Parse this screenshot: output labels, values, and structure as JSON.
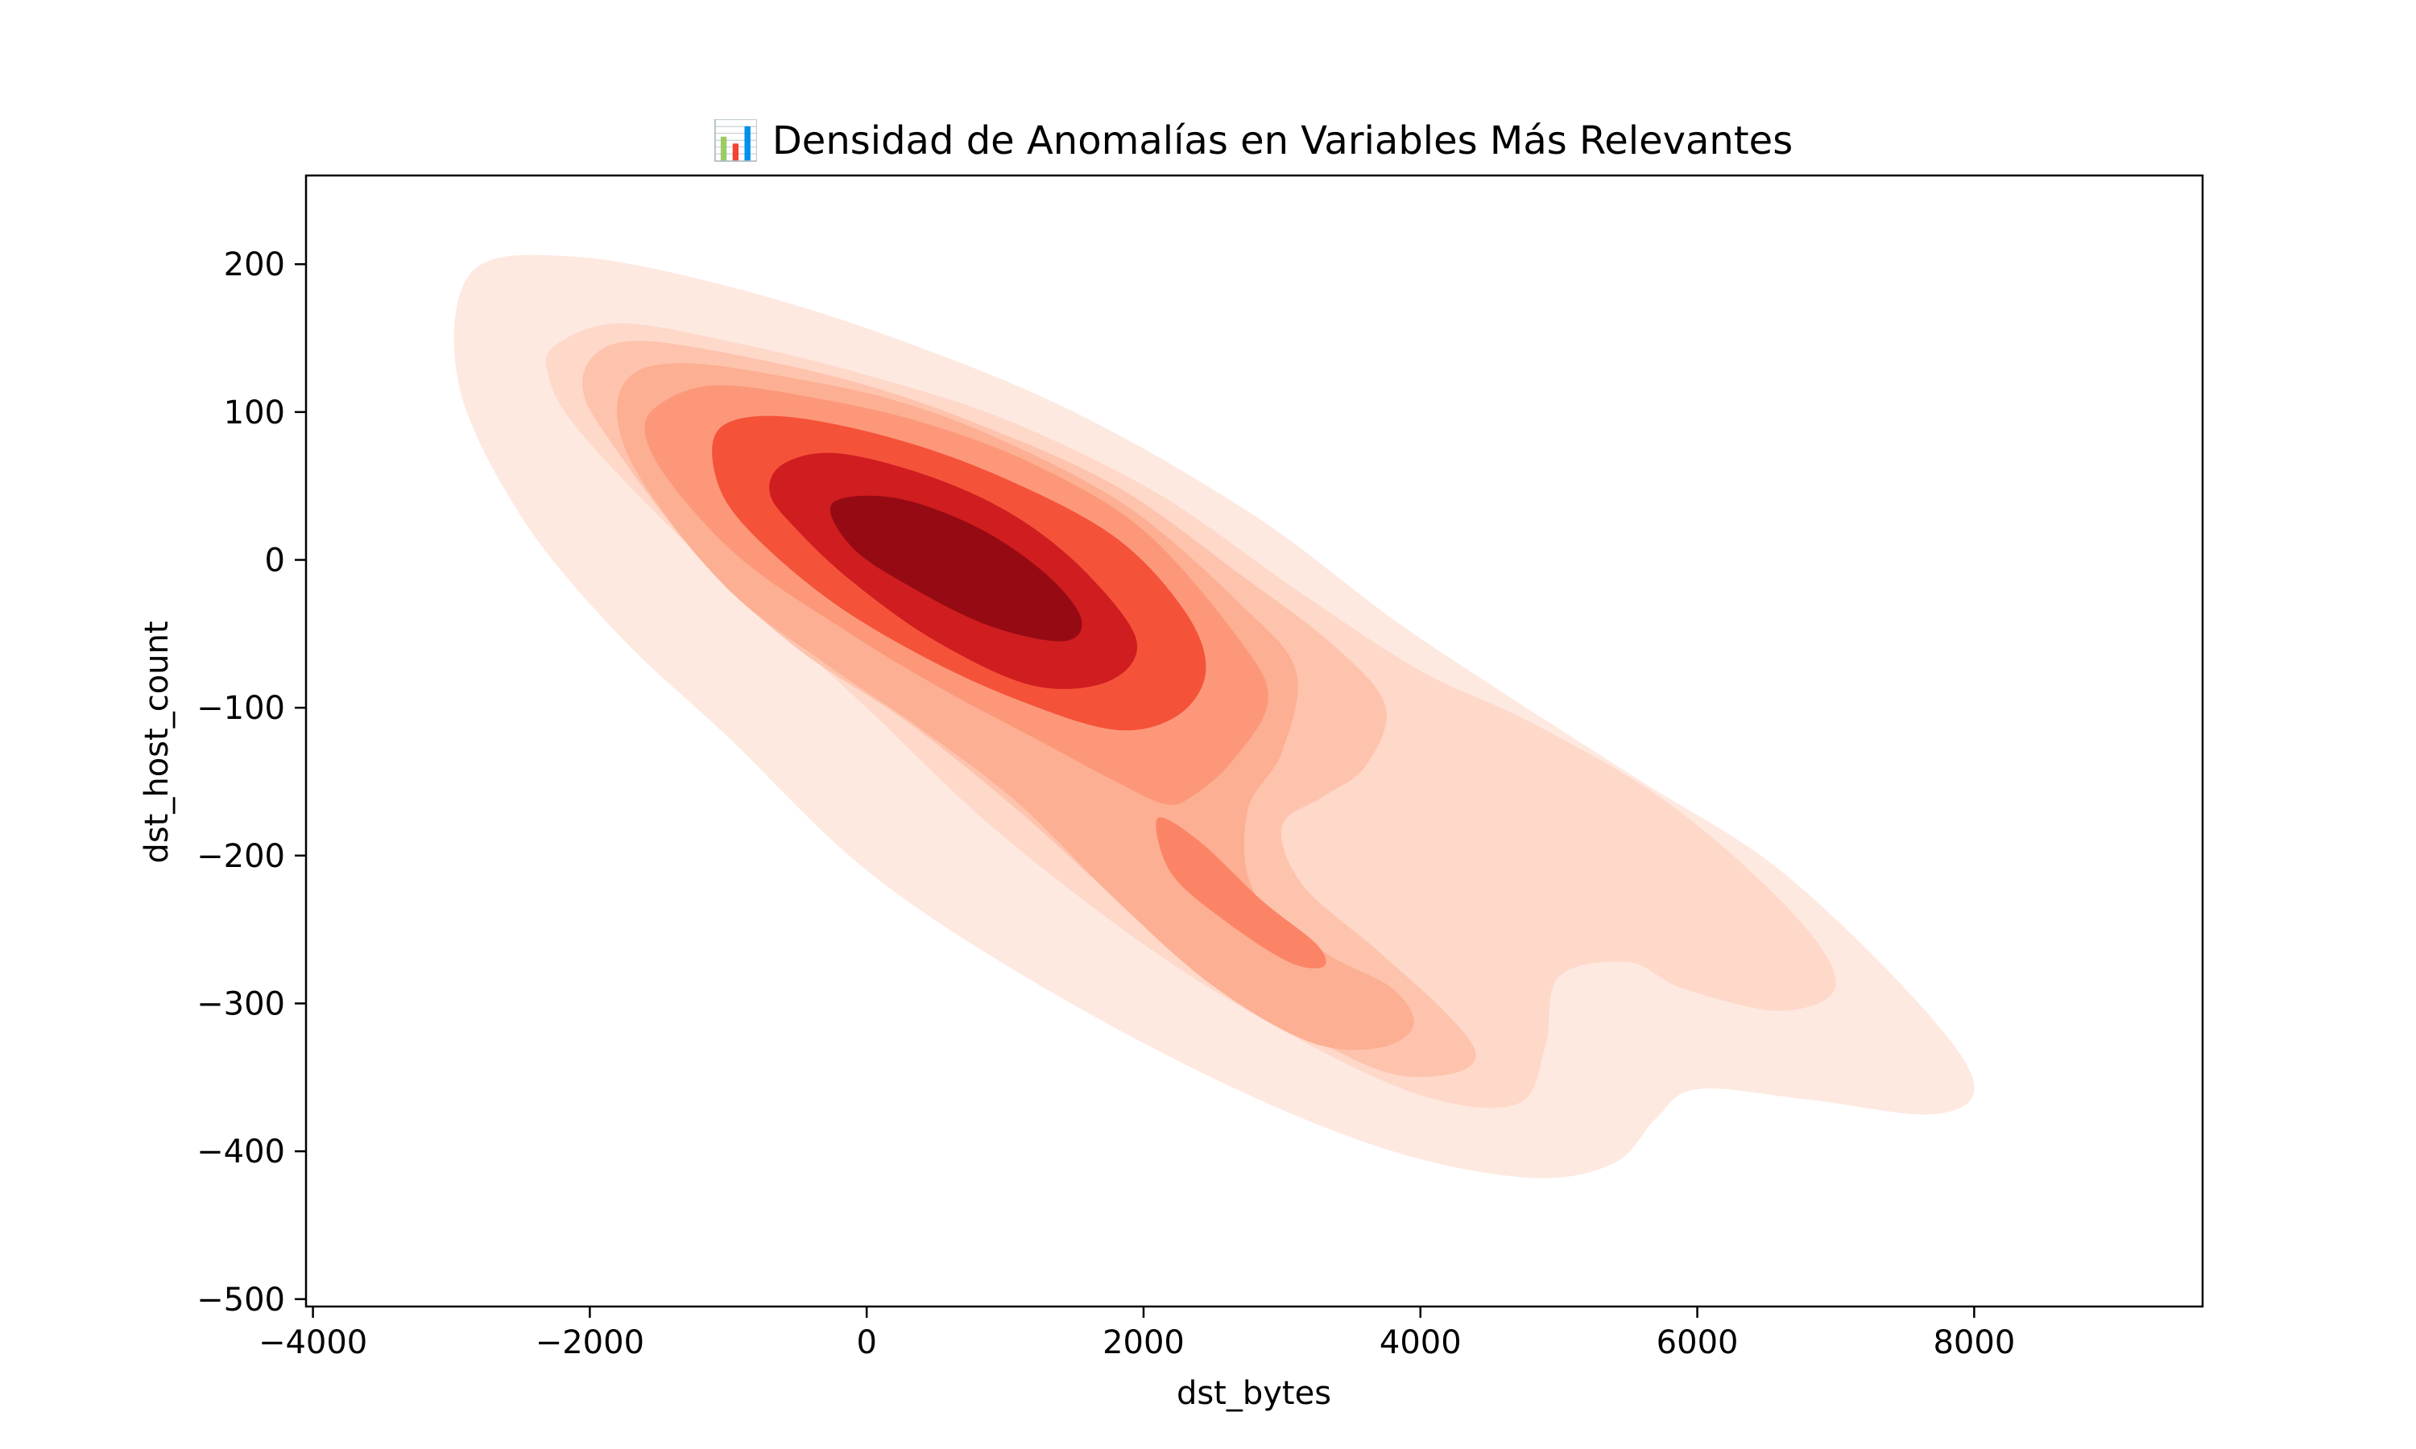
{
  "chart_data": {
    "type": "kde-contour",
    "title": "📊 Densidad de Anomalías en Variables Más Relevantes",
    "xlabel": "dst_bytes",
    "ylabel": "dst_host_count",
    "xlim": [
      -4050,
      9650
    ],
    "ylim": [
      -505,
      260
    ],
    "xticks": [
      {
        "value": -4000,
        "label": "−4000"
      },
      {
        "value": -2000,
        "label": "−2000"
      },
      {
        "value": 0,
        "label": "0"
      },
      {
        "value": 2000,
        "label": "2000"
      },
      {
        "value": 4000,
        "label": "4000"
      },
      {
        "value": 6000,
        "label": "6000"
      },
      {
        "value": 8000,
        "label": "8000"
      }
    ],
    "yticks": [
      {
        "value": 200,
        "label": "200"
      },
      {
        "value": 100,
        "label": "100"
      },
      {
        "value": 0,
        "label": "0"
      },
      {
        "value": -100,
        "label": "−100"
      },
      {
        "value": -200,
        "label": "−200"
      },
      {
        "value": -300,
        "label": "−300"
      },
      {
        "value": -400,
        "label": "−400"
      },
      {
        "value": -500,
        "label": "−500"
      }
    ],
    "grid": false,
    "colormap": "Reds",
    "density_peaks": [
      {
        "x": 700,
        "y": 0
      },
      {
        "x": 2900,
        "y": -235
      },
      {
        "x": 6400,
        "y": -250
      }
    ],
    "contour_levels": [
      {
        "level": 1,
        "color": "#fee9e1",
        "points": [
          [
            -2850,
            195
          ],
          [
            -2100,
            205
          ],
          [
            -1000,
            185
          ],
          [
            200,
            150
          ],
          [
            1500,
            100
          ],
          [
            2800,
            30
          ],
          [
            3800,
            -40
          ],
          [
            4600,
            -90
          ],
          [
            5600,
            -150
          ],
          [
            6600,
            -210
          ],
          [
            7600,
            -300
          ],
          [
            8000,
            -355
          ],
          [
            7700,
            -375
          ],
          [
            6800,
            -365
          ],
          [
            6000,
            -358
          ],
          [
            5700,
            -378
          ],
          [
            5400,
            -408
          ],
          [
            4800,
            -418
          ],
          [
            3800,
            -400
          ],
          [
            2600,
            -355
          ],
          [
            1200,
            -285
          ],
          [
            0,
            -210
          ],
          [
            -1000,
            -120
          ],
          [
            -1800,
            -50
          ],
          [
            -2500,
            30
          ],
          [
            -2950,
            120
          ]
        ]
      },
      {
        "level": 2,
        "color": "#fed8c9",
        "points": [
          [
            -2250,
            145
          ],
          [
            -1800,
            160
          ],
          [
            -1000,
            148
          ],
          [
            0,
            125
          ],
          [
            1000,
            95
          ],
          [
            2100,
            45
          ],
          [
            3100,
            -20
          ],
          [
            4000,
            -75
          ],
          [
            4800,
            -110
          ],
          [
            5800,
            -165
          ],
          [
            6700,
            -240
          ],
          [
            7000,
            -288
          ],
          [
            6600,
            -305
          ],
          [
            5900,
            -290
          ],
          [
            5500,
            -272
          ],
          [
            5000,
            -282
          ],
          [
            4900,
            -330
          ],
          [
            4700,
            -368
          ],
          [
            4000,
            -362
          ],
          [
            3000,
            -318
          ],
          [
            2000,
            -260
          ],
          [
            900,
            -180
          ],
          [
            0,
            -100
          ],
          [
            -700,
            -40
          ],
          [
            -1400,
            20
          ],
          [
            -2100,
            90
          ],
          [
            -2300,
            125
          ]
        ]
      },
      {
        "level": 3,
        "color": "#fdc3ad",
        "points": [
          [
            -1950,
            140
          ],
          [
            -1600,
            148
          ],
          [
            -800,
            136
          ],
          [
            0,
            118
          ],
          [
            800,
            92
          ],
          [
            1800,
            50
          ],
          [
            2700,
            -10
          ],
          [
            3400,
            -60
          ],
          [
            3750,
            -100
          ],
          [
            3600,
            -140
          ],
          [
            3300,
            -160
          ],
          [
            3000,
            -180
          ],
          [
            3150,
            -220
          ],
          [
            3700,
            -265
          ],
          [
            4200,
            -308
          ],
          [
            4400,
            -335
          ],
          [
            4200,
            -348
          ],
          [
            3700,
            -345
          ],
          [
            2900,
            -305
          ],
          [
            2000,
            -245
          ],
          [
            1100,
            -170
          ],
          [
            300,
            -110
          ],
          [
            -500,
            -60
          ],
          [
            -1200,
            0
          ],
          [
            -1850,
            80
          ],
          [
            -2050,
            115
          ]
        ]
      },
      {
        "level": 4,
        "color": "#fcaf93",
        "points": [
          [
            -1700,
            125
          ],
          [
            -1300,
            133
          ],
          [
            -600,
            124
          ],
          [
            200,
            108
          ],
          [
            1000,
            80
          ],
          [
            1900,
            35
          ],
          [
            2700,
            -30
          ],
          [
            3100,
            -75
          ],
          [
            3000,
            -130
          ],
          [
            2750,
            -170
          ],
          [
            2800,
            -225
          ],
          [
            3300,
            -265
          ],
          [
            3800,
            -290
          ],
          [
            3950,
            -315
          ],
          [
            3700,
            -330
          ],
          [
            3200,
            -326
          ],
          [
            2500,
            -288
          ],
          [
            1800,
            -230
          ],
          [
            1100,
            -165
          ],
          [
            400,
            -115
          ],
          [
            -300,
            -70
          ],
          [
            -1000,
            -20
          ],
          [
            -1600,
            50
          ],
          [
            -1800,
            95
          ]
        ]
      },
      {
        "level": 5,
        "color": "#fc9879",
        "points": [
          [
            -1500,
            105
          ],
          [
            -1100,
            118
          ],
          [
            -400,
            110
          ],
          [
            400,
            93
          ],
          [
            1200,
            65
          ],
          [
            2000,
            20
          ],
          [
            2700,
            -55
          ],
          [
            2900,
            -95
          ],
          [
            2650,
            -135
          ],
          [
            2350,
            -160
          ],
          [
            2150,
            -165
          ],
          [
            1800,
            -150
          ],
          [
            1200,
            -120
          ],
          [
            500,
            -85
          ],
          [
            -200,
            -45
          ],
          [
            -900,
            0
          ],
          [
            -1400,
            50
          ],
          [
            -1600,
            85
          ]
        ]
      },
      {
        "level": 6,
        "color": "#f5523a",
        "points": [
          [
            -1050,
            90
          ],
          [
            -600,
            97
          ],
          [
            200,
            82
          ],
          [
            1000,
            55
          ],
          [
            1800,
            15
          ],
          [
            2300,
            -35
          ],
          [
            2450,
            -75
          ],
          [
            2250,
            -105
          ],
          [
            1800,
            -115
          ],
          [
            1100,
            -95
          ],
          [
            400,
            -65
          ],
          [
            -300,
            -25
          ],
          [
            -900,
            25
          ],
          [
            -1100,
            60
          ]
        ]
      },
      {
        "level": 7,
        "color": "#d01d1f",
        "points": [
          [
            -600,
            65
          ],
          [
            -200,
            72
          ],
          [
            500,
            55
          ],
          [
            1100,
            28
          ],
          [
            1600,
            -10
          ],
          [
            1950,
            -55
          ],
          [
            1750,
            -82
          ],
          [
            1200,
            -85
          ],
          [
            500,
            -55
          ],
          [
            -100,
            -15
          ],
          [
            -500,
            20
          ],
          [
            -700,
            45
          ]
        ]
      },
      {
        "level": 8,
        "color": "#960b13",
        "points": [
          [
            -250,
            38
          ],
          [
            200,
            42
          ],
          [
            800,
            22
          ],
          [
            1300,
            -10
          ],
          [
            1550,
            -40
          ],
          [
            1420,
            -55
          ],
          [
            900,
            -45
          ],
          [
            350,
            -20
          ],
          [
            -100,
            8
          ]
        ]
      },
      {
        "level": 5,
        "color": "#fc8466",
        "points": [
          [
            2100,
            -175
          ],
          [
            2400,
            -190
          ],
          [
            2850,
            -230
          ],
          [
            3250,
            -260
          ],
          [
            3300,
            -275
          ],
          [
            3050,
            -272
          ],
          [
            2600,
            -245
          ],
          [
            2200,
            -212
          ]
        ]
      }
    ]
  }
}
